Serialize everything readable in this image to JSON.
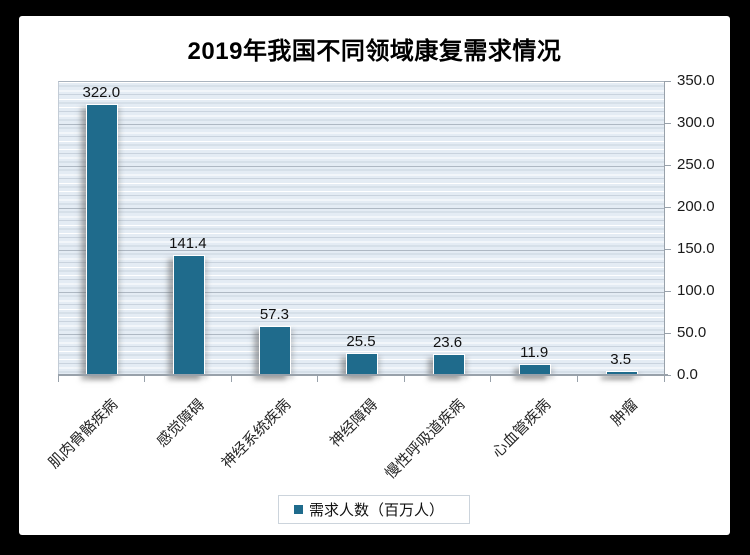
{
  "chart_data": {
    "type": "bar",
    "title": "2019年我国不同领域康复需求情况",
    "categories": [
      "肌肉骨骼疾病",
      "感觉障碍",
      "神经系统疾病",
      "神经障碍",
      "慢性呼吸道疾病",
      "心血管疾病",
      "肿瘤"
    ],
    "values": [
      322.0,
      141.4,
      57.3,
      25.5,
      23.6,
      11.9,
      3.5
    ],
    "value_labels": [
      "322.0",
      "141.4",
      "57.3",
      "25.5",
      "23.6",
      "11.9",
      "3.5"
    ],
    "xlabel": "",
    "ylabel": "",
    "ylim": [
      0,
      350
    ],
    "ytick_step": 50,
    "ytick_labels": [
      "0.0",
      "50.0",
      "100.0",
      "150.0",
      "200.0",
      "250.0",
      "300.0",
      "350.0"
    ],
    "y_axis_side": "right",
    "grid": true,
    "legend": {
      "label": "需求人数（百万人）",
      "position": "bottom"
    },
    "bar_color": "#1f6b8c",
    "frame_color": "#000000"
  }
}
